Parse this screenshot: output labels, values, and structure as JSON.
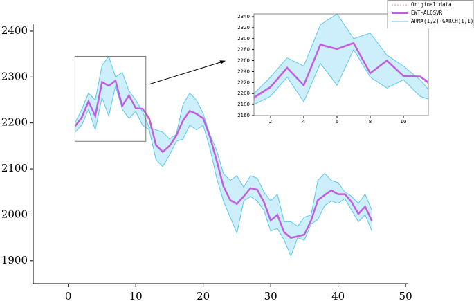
{
  "chart_data": {
    "type": "line",
    "x": [
      1,
      2,
      3,
      4,
      5,
      6,
      7,
      8,
      9,
      10,
      11,
      12,
      13,
      14,
      15,
      16,
      17,
      18,
      19,
      20,
      21,
      22,
      23,
      24,
      25,
      26,
      27,
      28,
      29,
      30,
      31,
      32,
      33,
      34,
      35,
      36,
      37,
      38,
      39,
      40,
      41,
      42,
      43,
      44,
      45
    ],
    "series": [
      {
        "name": "Original data",
        "color": "#ff80c0",
        "style": "dotted",
        "values": [
          2190,
          2210,
          2245,
          2215,
          2287,
          2280,
          2290,
          2238,
          2258,
          2232,
          2230,
          2205,
          2150,
          2135,
          2152,
          2170,
          2208,
          2228,
          2218,
          2208,
          2168,
          2120,
          2060,
          2030,
          2022,
          2040,
          2060,
          2053,
          2030,
          1985,
          2002,
          1960,
          1948,
          1955,
          1955,
          1990,
          2030,
          2045,
          2055,
          2046,
          2043,
          2030,
          2000,
          2020,
          1985
        ]
      },
      {
        "name": "EWT-ALOSVR",
        "color": "#bf5fe0",
        "style": "solid",
        "values": [
          2193,
          2212,
          2247,
          2215,
          2289,
          2281,
          2292,
          2237,
          2260,
          2232,
          2231,
          2210,
          2152,
          2137,
          2150,
          2172,
          2205,
          2226,
          2220,
          2210,
          2170,
          2118,
          2062,
          2032,
          2024,
          2040,
          2058,
          2055,
          2028,
          1988,
          2000,
          1962,
          1950,
          1953,
          1957,
          1988,
          2032,
          2043,
          2053,
          2045,
          2045,
          2028,
          2002,
          2018,
          1987
        ]
      },
      {
        "name": "ARMA(1,2)-GARCH(1,1)",
        "color": "#5bc8e8",
        "fill": "#cdeefb",
        "style": "band",
        "upper": [
          2200,
          2230,
          2265,
          2250,
          2325,
          2345,
          2300,
          2310,
          2270,
          2250,
          2225,
          2190,
          2185,
          2180,
          2165,
          2175,
          2240,
          2265,
          2250,
          2220,
          2175,
          2140,
          2090,
          2075,
          2085,
          2060,
          2085,
          2080,
          2050,
          2030,
          2045,
          1985,
          1985,
          1975,
          1995,
          2000,
          2075,
          2090,
          2075,
          2070,
          2050,
          2040,
          2025,
          2045,
          2010
        ],
        "lower": [
          2180,
          2195,
          2230,
          2185,
          2255,
          2215,
          2280,
          2230,
          2210,
          2225,
          2195,
          2185,
          2120,
          2105,
          2130,
          2160,
          2165,
          2195,
          2185,
          2195,
          2145,
          2080,
          2030,
          1995,
          1960,
          2030,
          2040,
          2030,
          2010,
          1965,
          1970,
          1945,
          1910,
          1950,
          1945,
          1980,
          1990,
          2020,
          2030,
          2025,
          2035,
          2010,
          1985,
          2000,
          1965
        ]
      }
    ],
    "xlim": [
      -5.2,
      50.4
    ],
    "xticks": [
      0,
      10,
      20,
      30,
      40,
      50
    ],
    "ylim": [
      1850,
      2415
    ],
    "yticks": [
      1900,
      2000,
      2100,
      2200,
      2300,
      2400
    ],
    "legend": "upper-right",
    "inset": {
      "xlim": [
        1,
        11.5
      ],
      "ylim": [
        2160,
        2345
      ],
      "xticks": [
        2,
        4,
        6,
        8,
        10
      ],
      "yticks": [
        2160,
        2180,
        2200,
        2220,
        2240,
        2260,
        2280,
        2300,
        2320,
        2340
      ]
    }
  }
}
